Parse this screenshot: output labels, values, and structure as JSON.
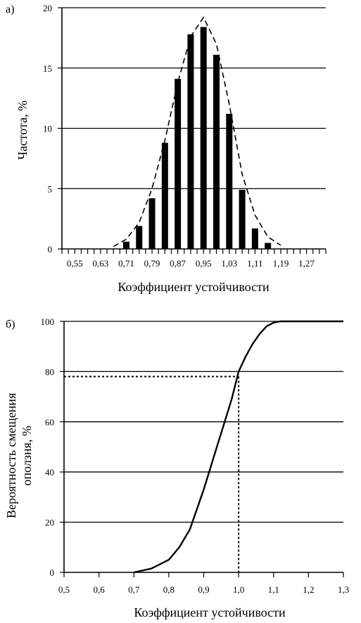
{
  "chart_data": [
    {
      "panel_label": "а)",
      "type": "bar",
      "categories": [
        "0,55",
        "0,63",
        "0,71",
        "0,79",
        "0,87",
        "0,95",
        "1,03",
        "1,11",
        "1,19",
        "1,27"
      ],
      "x": [
        0.71,
        0.75,
        0.79,
        0.83,
        0.87,
        0.91,
        0.95,
        0.99,
        1.03,
        1.07,
        1.11,
        1.15
      ],
      "values": [
        0.6,
        1.9,
        4.2,
        8.8,
        14.1,
        17.8,
        18.4,
        16.1,
        11.2,
        4.9,
        1.7,
        0.5
      ],
      "fitted_curve": {
        "x": [
          0.67,
          0.71,
          0.75,
          0.79,
          0.83,
          0.87,
          0.91,
          0.95,
          0.99,
          1.03,
          1.07,
          1.11,
          1.15,
          1.19
        ],
        "y": [
          0.2,
          0.8,
          2.2,
          5.0,
          9.0,
          13.8,
          17.6,
          19.2,
          17.0,
          12.0,
          6.2,
          2.8,
          1.0,
          0.3
        ]
      },
      "xlabel": "Коэффициент устойчивости",
      "ylabel": "Частота, %",
      "xlim": [
        0.51,
        1.33
      ],
      "ylim": [
        0,
        20
      ],
      "yticks": [
        0,
        5,
        10,
        15,
        20
      ],
      "grid": true
    },
    {
      "panel_label": "б)",
      "type": "line",
      "x": [
        0.7,
        0.75,
        0.8,
        0.83,
        0.86,
        0.88,
        0.9,
        0.92,
        0.94,
        0.96,
        0.98,
        1.0,
        1.02,
        1.04,
        1.06,
        1.08,
        1.1,
        1.12,
        1.15,
        1.3
      ],
      "y": [
        0,
        1.5,
        5,
        10,
        17,
        25,
        33,
        42,
        51,
        60,
        69,
        80,
        86,
        91,
        95,
        98,
        99.5,
        100,
        100,
        100
      ],
      "reference": {
        "x": 1.0,
        "y": 78
      },
      "xlabel": "Коэффициент устойчивости",
      "ylabel": "Вероятность смещения оползня, %",
      "ylabel_lines": [
        "Вероятность смещения",
        "оползня, %"
      ],
      "xticks": [
        "0,5",
        "0,6",
        "0,7",
        "0,8",
        "0,9",
        "1,0",
        "1,1",
        "1,2",
        "1,3"
      ],
      "xlim": [
        0.5,
        1.3
      ],
      "ylim": [
        0,
        100
      ],
      "yticks": [
        0,
        20,
        40,
        60,
        80,
        100
      ],
      "grid": true
    }
  ]
}
